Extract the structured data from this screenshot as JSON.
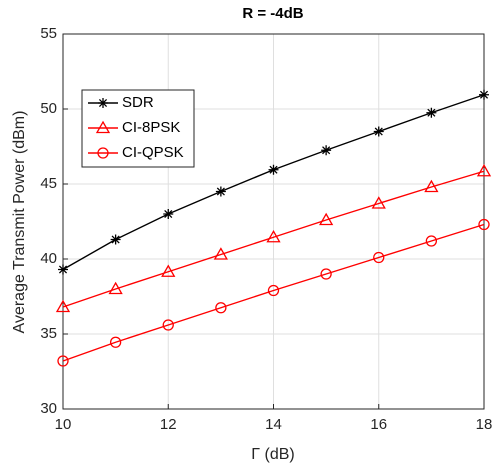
{
  "chart_data": {
    "type": "line",
    "title": "R = -4dB",
    "x_label": "Γ (dB)",
    "y_label": "Average Transmit Power (dBm)",
    "x": [
      10,
      11,
      12,
      13,
      14,
      15,
      16,
      17,
      18
    ],
    "series": [
      {
        "name": "SDR",
        "color": "#000000",
        "marker": "asterisk",
        "values": [
          39.3,
          41.3,
          43.0,
          44.5,
          45.95,
          47.25,
          48.5,
          49.75,
          50.95
        ]
      },
      {
        "name": "CI-8PSK",
        "color": "#ff0000",
        "marker": "triangle",
        "values": [
          36.8,
          38.0,
          39.15,
          40.3,
          41.45,
          42.6,
          43.7,
          44.8,
          45.85
        ]
      },
      {
        "name": "CI-QPSK",
        "color": "#ff0000",
        "marker": "circle",
        "values": [
          33.2,
          34.45,
          35.6,
          36.75,
          37.9,
          39.0,
          40.1,
          41.2,
          42.3
        ]
      }
    ],
    "xlim": [
      10,
      18
    ],
    "xticks": [
      10,
      12,
      14,
      16,
      18
    ],
    "ylim": [
      30,
      55
    ],
    "yticks": [
      30,
      35,
      40,
      45,
      50,
      55
    ],
    "grid": true,
    "legend": "upper-left"
  }
}
